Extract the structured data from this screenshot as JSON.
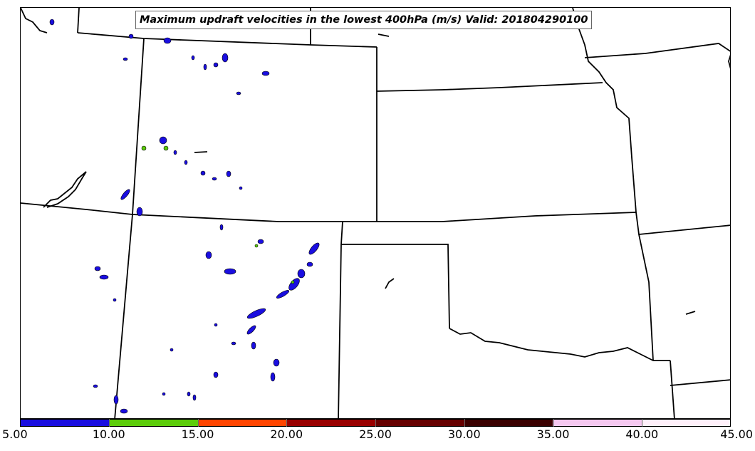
{
  "title": "Maximum updraft velocities in the lowest 400hPa (m/s) Valid: 201804290100",
  "colorbar": {
    "ticks": [
      "5.00",
      "10.00",
      "15.00",
      "20.00",
      "25.00",
      "30.00",
      "35.00",
      "40.00",
      "45.00"
    ],
    "colors": [
      "#1a0ee0",
      "#5ccc0a",
      "#ff4500",
      "#990000",
      "#660000",
      "#3a0000",
      "#f5c8f0",
      "#fff0fa"
    ]
  },
  "map": {
    "boundary_color": "#000000",
    "contour_fill": "#1a0ee0",
    "contour_highlight": "#5ccc0a"
  }
}
